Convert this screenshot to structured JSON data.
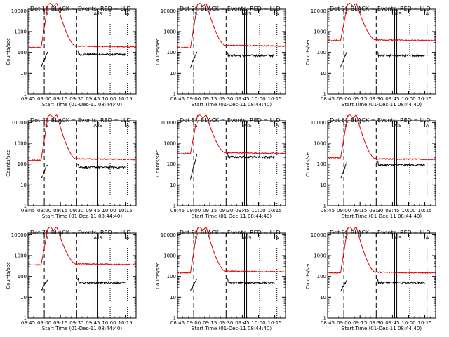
{
  "chart_data": {
    "type": "line",
    "title": "",
    "panels": [
      {
        "title": "Det 1f, BLACK = Events, RED = LLD",
        "red_level": 200,
        "red_pre": 170,
        "black_pre": 100,
        "black_post": 80
      },
      {
        "title": "Det 2f, BLACK = Events, RED = LLD",
        "red_level": 220,
        "red_pre": 170,
        "black_pre": 110,
        "black_post": 70
      },
      {
        "title": "Det 3f, BLACK = Events, RED = LLD",
        "red_level": 400,
        "red_pre": 380,
        "black_pre": 110,
        "black_post": 70
      },
      {
        "title": "Det 4f, BLACK = Events, RED = LLD",
        "red_level": 180,
        "red_pre": 150,
        "black_pre": 100,
        "black_post": 70
      },
      {
        "title": "Det 5f, BLACK = Events, RED = LLD",
        "red_level": 350,
        "red_pre": 320,
        "black_pre": 280,
        "black_post": 220
      },
      {
        "title": "Det 6f, BLACK = Events, RED = LLD",
        "red_level": 180,
        "red_pre": 200,
        "black_pre": 130,
        "black_post": 90
      },
      {
        "title": "Det 7f, BLACK = Events, RED = LLD",
        "red_level": 400,
        "red_pre": 350,
        "black_pre": 70,
        "black_post": 50
      },
      {
        "title": "Det 8f, BLACK = Events, RED = LLD",
        "red_level": 180,
        "red_pre": 150,
        "black_pre": 80,
        "black_post": 50
      },
      {
        "title": "Det 9f, BLACK = Events, RED = LLD",
        "red_level": 160,
        "red_pre": 150,
        "black_pre": 70,
        "black_post": 50
      }
    ],
    "x_tick_labels": [
      "08:45",
      "09:00",
      "09:15",
      "09:30",
      "09:45",
      "10:00",
      "10:15"
    ],
    "x_ticks_min": [
      0,
      15,
      30,
      45,
      60,
      75,
      90
    ],
    "xlim_min": [
      0,
      100
    ],
    "y_tick_values": [
      1,
      10,
      100,
      1000,
      10000
    ],
    "y_tick_labels": [
      "1",
      "10",
      "100",
      "1000",
      "10000"
    ],
    "ylim": [
      1,
      12000
    ],
    "yscale": "log",
    "xlabel": "Start Time (01-Dec-11 08:44:40)",
    "ylabel": "Counts/sec",
    "dashed_lines_min": [
      15,
      45
    ],
    "solid_lines_min": [
      62,
      64
    ],
    "dotted_lines_min": [
      76,
      92
    ],
    "markers": [
      {
        "label": "S",
        "t": 15
      },
      {
        "label": "A",
        "t": 60
      },
      {
        "label": "S",
        "t": 65
      },
      {
        "label": "A",
        "t": 90
      }
    ],
    "series_colors": {
      "events": "#000000",
      "lld": "#e00000"
    }
  }
}
